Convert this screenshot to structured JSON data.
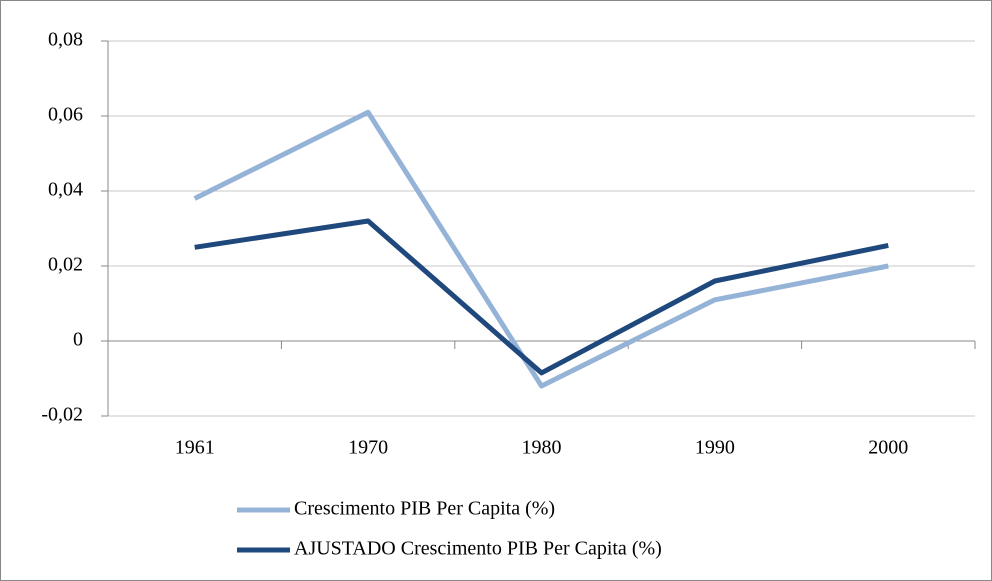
{
  "chart_data": {
    "type": "line",
    "categories": [
      "1961",
      "1970",
      "1980",
      "1990",
      "2000"
    ],
    "series": [
      {
        "name": "Crescimento PIB Per Capita (%)",
        "color": "#95b3d7",
        "values": [
          0.038,
          0.061,
          -0.012,
          0.011,
          0.02
        ]
      },
      {
        "name": "AJUSTADO Crescimento PIB Per Capita (%)",
        "color": "#1f497d",
        "values": [
          0.025,
          0.032,
          -0.0085,
          0.016,
          0.0255
        ]
      }
    ],
    "ylim": [
      -0.02,
      0.08
    ],
    "yticks": [
      {
        "value": -0.02,
        "label": "-0,02"
      },
      0,
      {
        "value": 0.02,
        "label": "0,02"
      },
      {
        "value": 0.04,
        "label": "0,04"
      },
      {
        "value": 0.06,
        "label": "0,06"
      },
      {
        "value": 0.08,
        "label": "0,08"
      }
    ],
    "grid": true,
    "legend": "bottom"
  }
}
